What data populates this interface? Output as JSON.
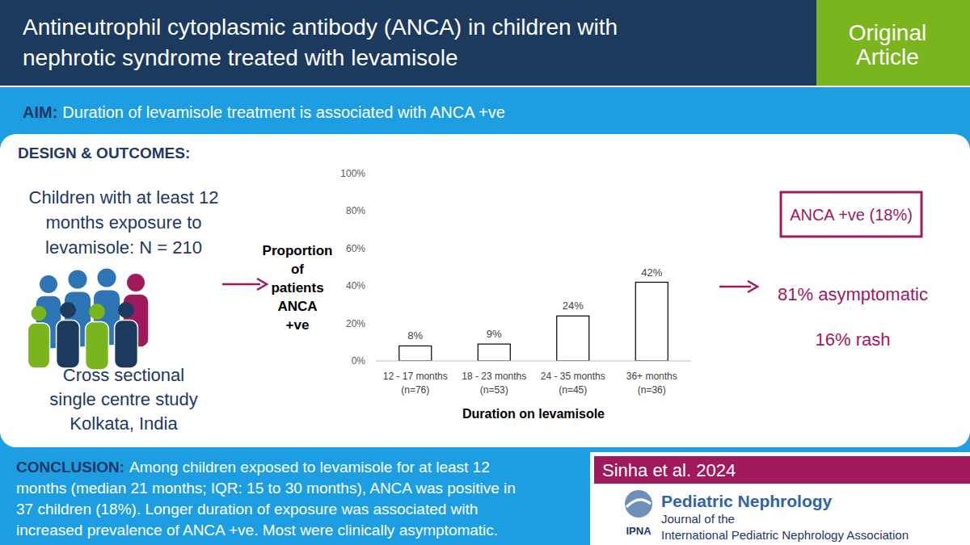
{
  "header": {
    "title": [
      "Antineutrophil cytoplasmic antibody (ANCA) in children with",
      "nephrotic syndrome treated with levamisole"
    ],
    "badge": [
      "Original",
      "Article"
    ]
  },
  "aim": {
    "label": "AIM:",
    "text": "Duration of levamisole treatment is associated with ANCA +ve"
  },
  "design": {
    "heading": "DESIGN & OUTCOMES:",
    "population": [
      "Children with at least 12",
      "months exposure to",
      "levamisole: N = 210"
    ],
    "study": [
      "Cross sectional",
      "single centre study",
      "Kolkata, India"
    ]
  },
  "chart_data": {
    "type": "bar",
    "ylabel": "Proportion\nof\npatients\nANCA\n+ve",
    "xlabel": "Duration on levamisole",
    "categories": [
      "12 - 17 months\n(n=76)",
      "18 - 23 months\n(n=53)",
      "24 - 35 months\n(n=45)",
      "36+ months\n(n=36)"
    ],
    "values": [
      8,
      9,
      24,
      42
    ],
    "value_labels": [
      "8%",
      "9%",
      "24%",
      "42%"
    ],
    "data_labels": true,
    "color": "#ffffff",
    "ylim": [
      0,
      100
    ],
    "yticks": [
      {
        "value": 0,
        "label": "0%"
      },
      {
        "value": 20,
        "label": "20%"
      },
      {
        "value": 40,
        "label": "40%"
      },
      {
        "value": 60,
        "label": "60%"
      },
      {
        "value": 80,
        "label": "80%"
      },
      {
        "value": 100,
        "label": "100%"
      }
    ],
    "grid": false
  },
  "outcomes": {
    "box": "ANCA +ve (18%)",
    "items": [
      "81% asymptomatic",
      "16% rash"
    ]
  },
  "conclusion": {
    "label": "CONCLUSION:",
    "lines": [
      "Among children exposed to levamisole for at least 12",
      "months (median 21 months; IQR: 15 to 30 months), ANCA was positive in",
      "37 children (18%). Longer duration of exposure was associated with",
      "increased prevalence of ANCA +ve. Most were clinically asymptomatic."
    ]
  },
  "footer": {
    "citation": "Sinha et al. 2024",
    "journal": "Pediatric Nephrology",
    "journal_lines": [
      "Journal of the",
      "International  Pediatric Nephrology Association"
    ],
    "logo": "IPNA"
  }
}
